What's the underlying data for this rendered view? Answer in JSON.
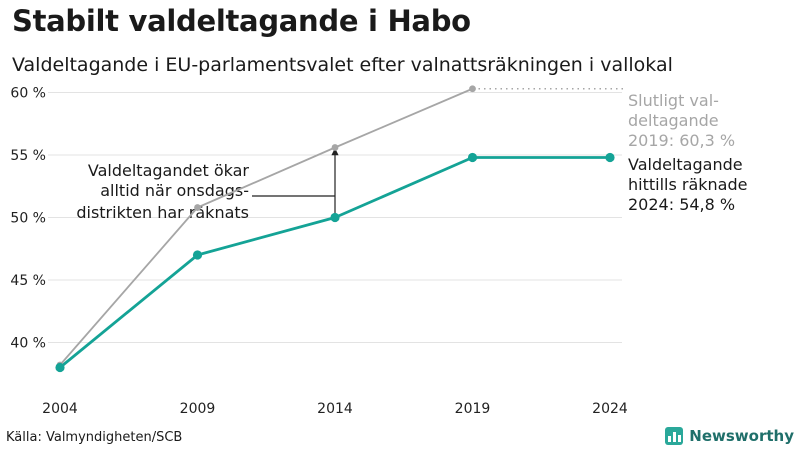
{
  "title": "Stabilt valdeltagande i Habo",
  "subtitle": "Valdeltagande i EU-parlamentsvalet efter valnattsräkningen i vallokal",
  "source": "Källa: Valmyndigheten/SCB",
  "brand": {
    "name": "Newsworthy",
    "color": "#2aa89a"
  },
  "chart_data": {
    "type": "line",
    "x": [
      2004,
      2009,
      2014,
      2019,
      2024
    ],
    "ylim": [
      37,
      61
    ],
    "yticks": [
      40,
      45,
      50,
      55,
      60
    ],
    "ytick_labels": [
      "40 %",
      "45 %",
      "50 %",
      "55 %",
      "60 %"
    ],
    "xtick_labels": [
      "2004",
      "2009",
      "2014",
      "2019",
      "2024"
    ],
    "grid": true,
    "series": [
      {
        "key": "final",
        "color": "#a6a6a6",
        "values": [
          38.2,
          50.8,
          55.6,
          60.3,
          null
        ],
        "label_lines": [
          "Slutligt val-",
          "deltagande",
          "2019: 60,3 %"
        ]
      },
      {
        "key": "preliminary",
        "color": "#14a396",
        "values": [
          38.0,
          47.0,
          50.0,
          54.8,
          54.8
        ],
        "label_lines": [
          "Valdeltagande",
          "hittills räknade",
          "2024: 54,8 %"
        ]
      }
    ],
    "annotation": {
      "lines": [
        "Valdeltagandet ökar",
        "alltid när onsdags-",
        "distrikten har räknats"
      ],
      "x": 2014
    }
  }
}
